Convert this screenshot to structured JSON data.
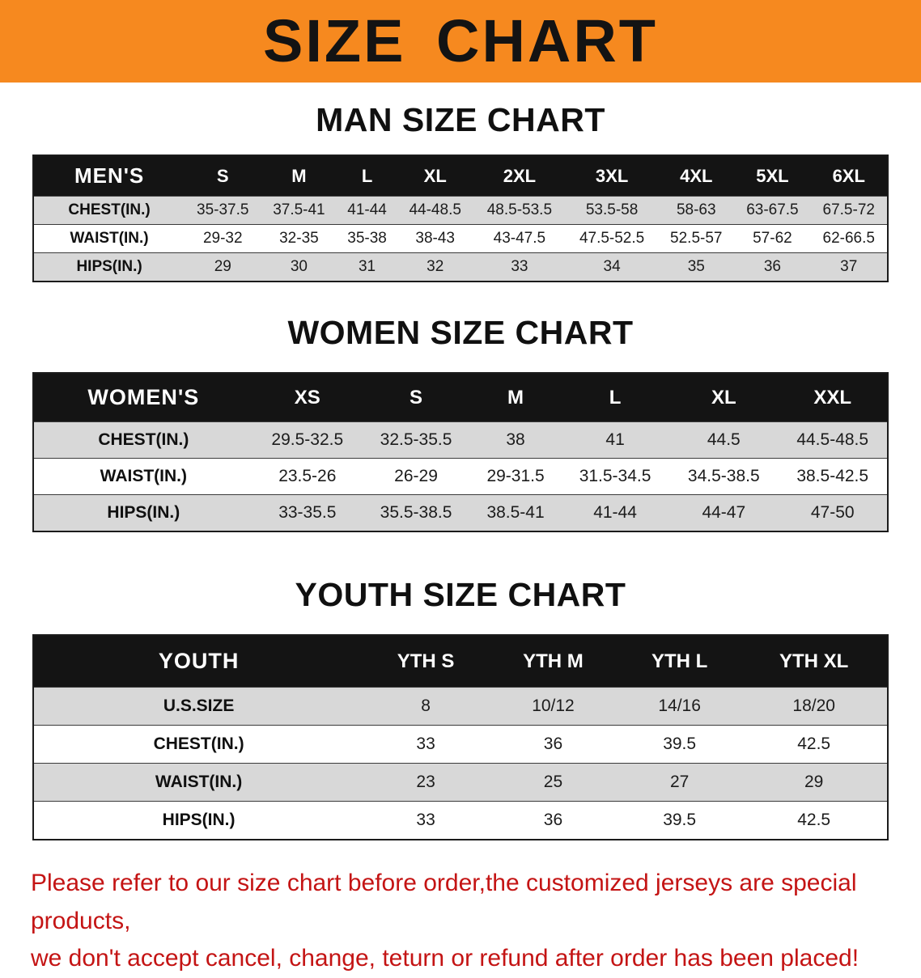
{
  "banner": {
    "title": "SIZE CHART",
    "background_color": "#F6891F",
    "text_color": "#131313"
  },
  "sections": [
    {
      "heading": "MAN SIZE CHART",
      "table": {
        "header": [
          "MEN'S",
          "S",
          "M",
          "L",
          "XL",
          "2XL",
          "3XL",
          "4XL",
          "5XL",
          "6XL"
        ],
        "rows": [
          [
            "CHEST(IN.)",
            "35-37.5",
            "37.5-41",
            "41-44",
            "44-48.5",
            "48.5-53.5",
            "53.5-58",
            "58-63",
            "63-67.5",
            "67.5-72"
          ],
          [
            "WAIST(IN.)",
            "29-32",
            "32-35",
            "35-38",
            "38-43",
            "43-47.5",
            "47.5-52.5",
            "52.5-57",
            "57-62",
            "62-66.5"
          ],
          [
            "HIPS(IN.)",
            "29",
            "30",
            "31",
            "32",
            "33",
            "34",
            "35",
            "36",
            "37"
          ]
        ]
      }
    },
    {
      "heading": "WOMEN SIZE CHART",
      "table": {
        "header": [
          "WOMEN'S",
          "XS",
          "S",
          "M",
          "L",
          "XL",
          "XXL"
        ],
        "rows": [
          [
            "CHEST(IN.)",
            "29.5-32.5",
            "32.5-35.5",
            "38",
            "41",
            "44.5",
            "44.5-48.5"
          ],
          [
            "WAIST(IN.)",
            "23.5-26",
            "26-29",
            "29-31.5",
            "31.5-34.5",
            "34.5-38.5",
            "38.5-42.5"
          ],
          [
            "HIPS(IN.)",
            "33-35.5",
            "35.5-38.5",
            "38.5-41",
            "41-44",
            "44-47",
            "47-50"
          ]
        ]
      }
    },
    {
      "heading": "YOUTH SIZE CHART",
      "table": {
        "header": [
          "YOUTH",
          "YTH S",
          "YTH M",
          "YTH L",
          "YTH XL"
        ],
        "rows": [
          [
            "U.S.SIZE",
            "8",
            "10/12",
            "14/16",
            "18/20"
          ],
          [
            "CHEST(IN.)",
            "33",
            "36",
            "39.5",
            "42.5"
          ],
          [
            "WAIST(IN.)",
            "23",
            "25",
            "27",
            "29"
          ],
          [
            "HIPS(IN.)",
            "33",
            "36",
            "39.5",
            "42.5"
          ]
        ]
      }
    }
  ],
  "footer": {
    "lines": [
      "Please refer to our size chart before order,the customized jerseys are special products,",
      "we don't accept cancel, change, teturn or refund after order has been placed!"
    ],
    "text_color": "#C41414"
  },
  "colors": {
    "row_stripe": "#D8D8D8",
    "table_header_bg": "#141414"
  }
}
